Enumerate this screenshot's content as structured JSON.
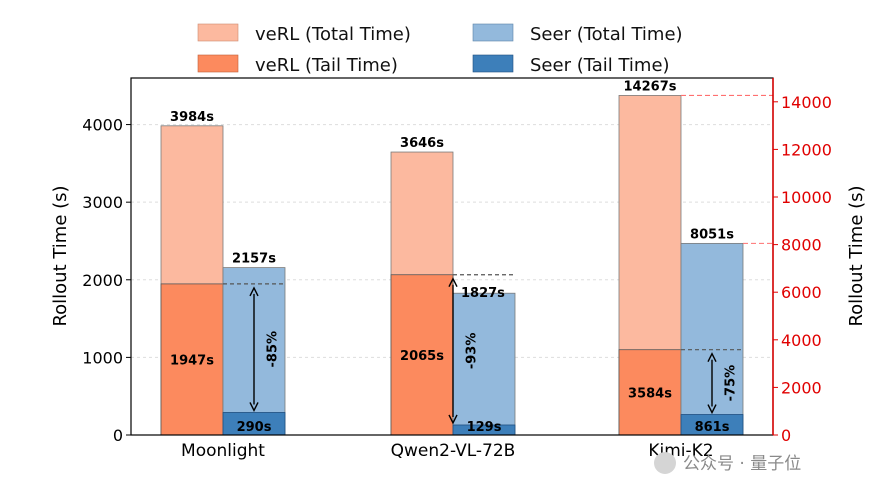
{
  "chart_data": {
    "type": "bar",
    "categories": [
      "Moonlight",
      "Qwen2-VL-72B",
      "Kimi-K2"
    ],
    "series": [
      {
        "name": "veRL (Total Time)",
        "color": "#fcb99f",
        "values": [
          3984,
          3646,
          14267
        ]
      },
      {
        "name": "veRL (Tail Time)",
        "color": "#fc8a5e",
        "values": [
          1947,
          2065,
          3584
        ]
      },
      {
        "name": "Seer (Total Time)",
        "color": "#93b9dc",
        "values": [
          2157,
          1827,
          8051
        ]
      },
      {
        "name": "Seer (Tail Time)",
        "color": "#3d7fba",
        "values": [
          290,
          129,
          861
        ]
      }
    ],
    "value_labels": {
      "verl_total": [
        "3984s",
        "3646s",
        "14267s"
      ],
      "verl_tail": [
        "1947s",
        "2065s",
        "3584s"
      ],
      "seer_total": [
        "2157s",
        "1827s",
        "8051s"
      ],
      "seer_tail": [
        "290s",
        "129s",
        "861s"
      ]
    },
    "reductions": [
      "-85%",
      "-93%",
      "-75%"
    ],
    "axis_scale_group": [
      "left",
      "left",
      "right"
    ],
    "ylabel": "Rollout Time (s)",
    "ylabel_right": "Rollout Time (s)",
    "ylim": [
      0,
      4600
    ],
    "ylim_right": [
      0,
      15000
    ],
    "yticks": [
      "0",
      "1000",
      "2000",
      "3000",
      "4000"
    ],
    "yticks_right": [
      "0",
      "2000",
      "4000",
      "6000",
      "8000",
      "10000",
      "12000",
      "14000"
    ],
    "right_axis_color": "#e00000",
    "grid": true,
    "legend_position": "top"
  },
  "watermark": "公众号 · 量子位"
}
